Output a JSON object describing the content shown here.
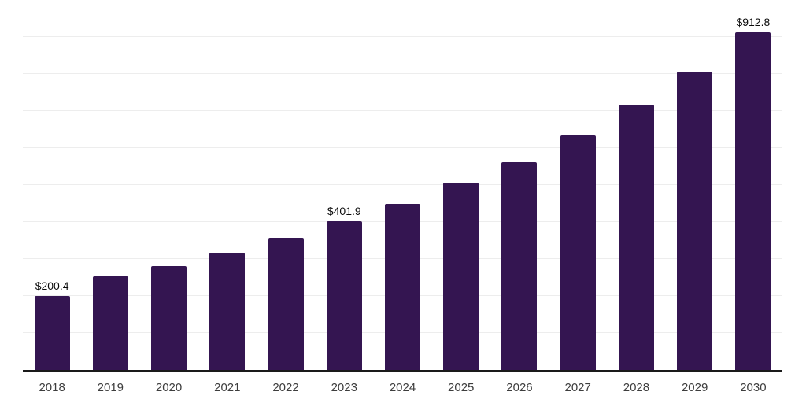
{
  "chart_data": {
    "type": "bar",
    "title": "",
    "xlabel": "",
    "ylabel": "",
    "categories": [
      "2018",
      "2019",
      "2020",
      "2021",
      "2022",
      "2023",
      "2024",
      "2025",
      "2026",
      "2027",
      "2028",
      "2029",
      "2030"
    ],
    "values": [
      200.4,
      254,
      280,
      317,
      355,
      401.9,
      448,
      507,
      562,
      635,
      717,
      806,
      912.8
    ],
    "data_labels": [
      "$200.4",
      null,
      null,
      null,
      null,
      "$401.9",
      null,
      null,
      null,
      null,
      null,
      null,
      "$912.8"
    ],
    "ylim": [
      0,
      1000
    ],
    "gridline_step": 100,
    "grid": true,
    "legend": "none",
    "colors": {
      "bar": "#341551",
      "gridline": "#ededed",
      "axis_line": "#1a1a1a",
      "data_label": "#0b0b0b",
      "tick_label": "#3d3d3d",
      "background": "#ffffff"
    }
  }
}
